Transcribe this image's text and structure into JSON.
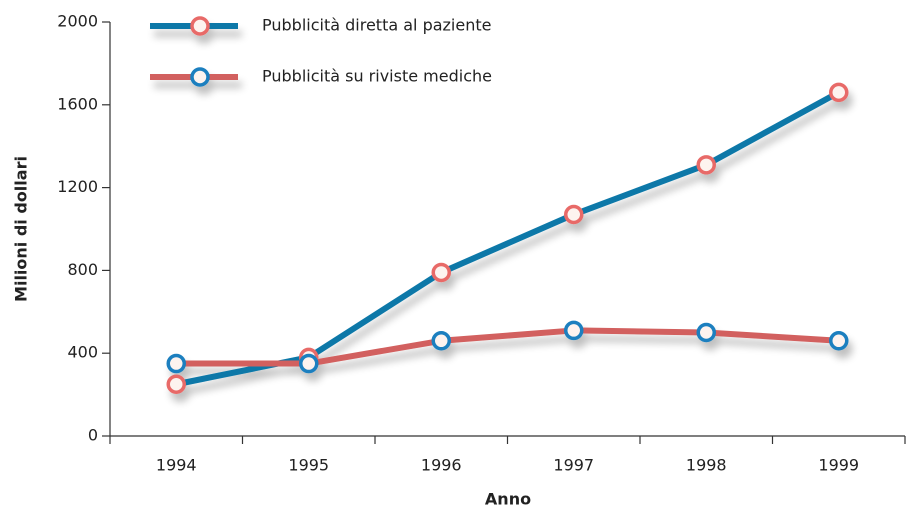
{
  "chart_data": {
    "type": "line",
    "x_label": "Anno",
    "y_label": "Milioni di dollari",
    "categories": [
      "1994",
      "1995",
      "1996",
      "1997",
      "1998",
      "1999"
    ],
    "series": [
      {
        "name": "Pubblicità diretta al paziente",
        "color": "#0a78a8",
        "marker_color": "#e86a68",
        "values": [
          250,
          380,
          790,
          1070,
          1310,
          1660
        ]
      },
      {
        "name": "Pubblicità su riviste mediche",
        "color": "#d2605e",
        "marker_color": "#1a7fbf",
        "values": [
          350,
          350,
          460,
          510,
          500,
          460
        ]
      }
    ],
    "ylim": [
      0,
      2000
    ],
    "yticks": [
      0,
      400,
      800,
      1200,
      1600,
      2000
    ],
    "legend": "top-left"
  }
}
